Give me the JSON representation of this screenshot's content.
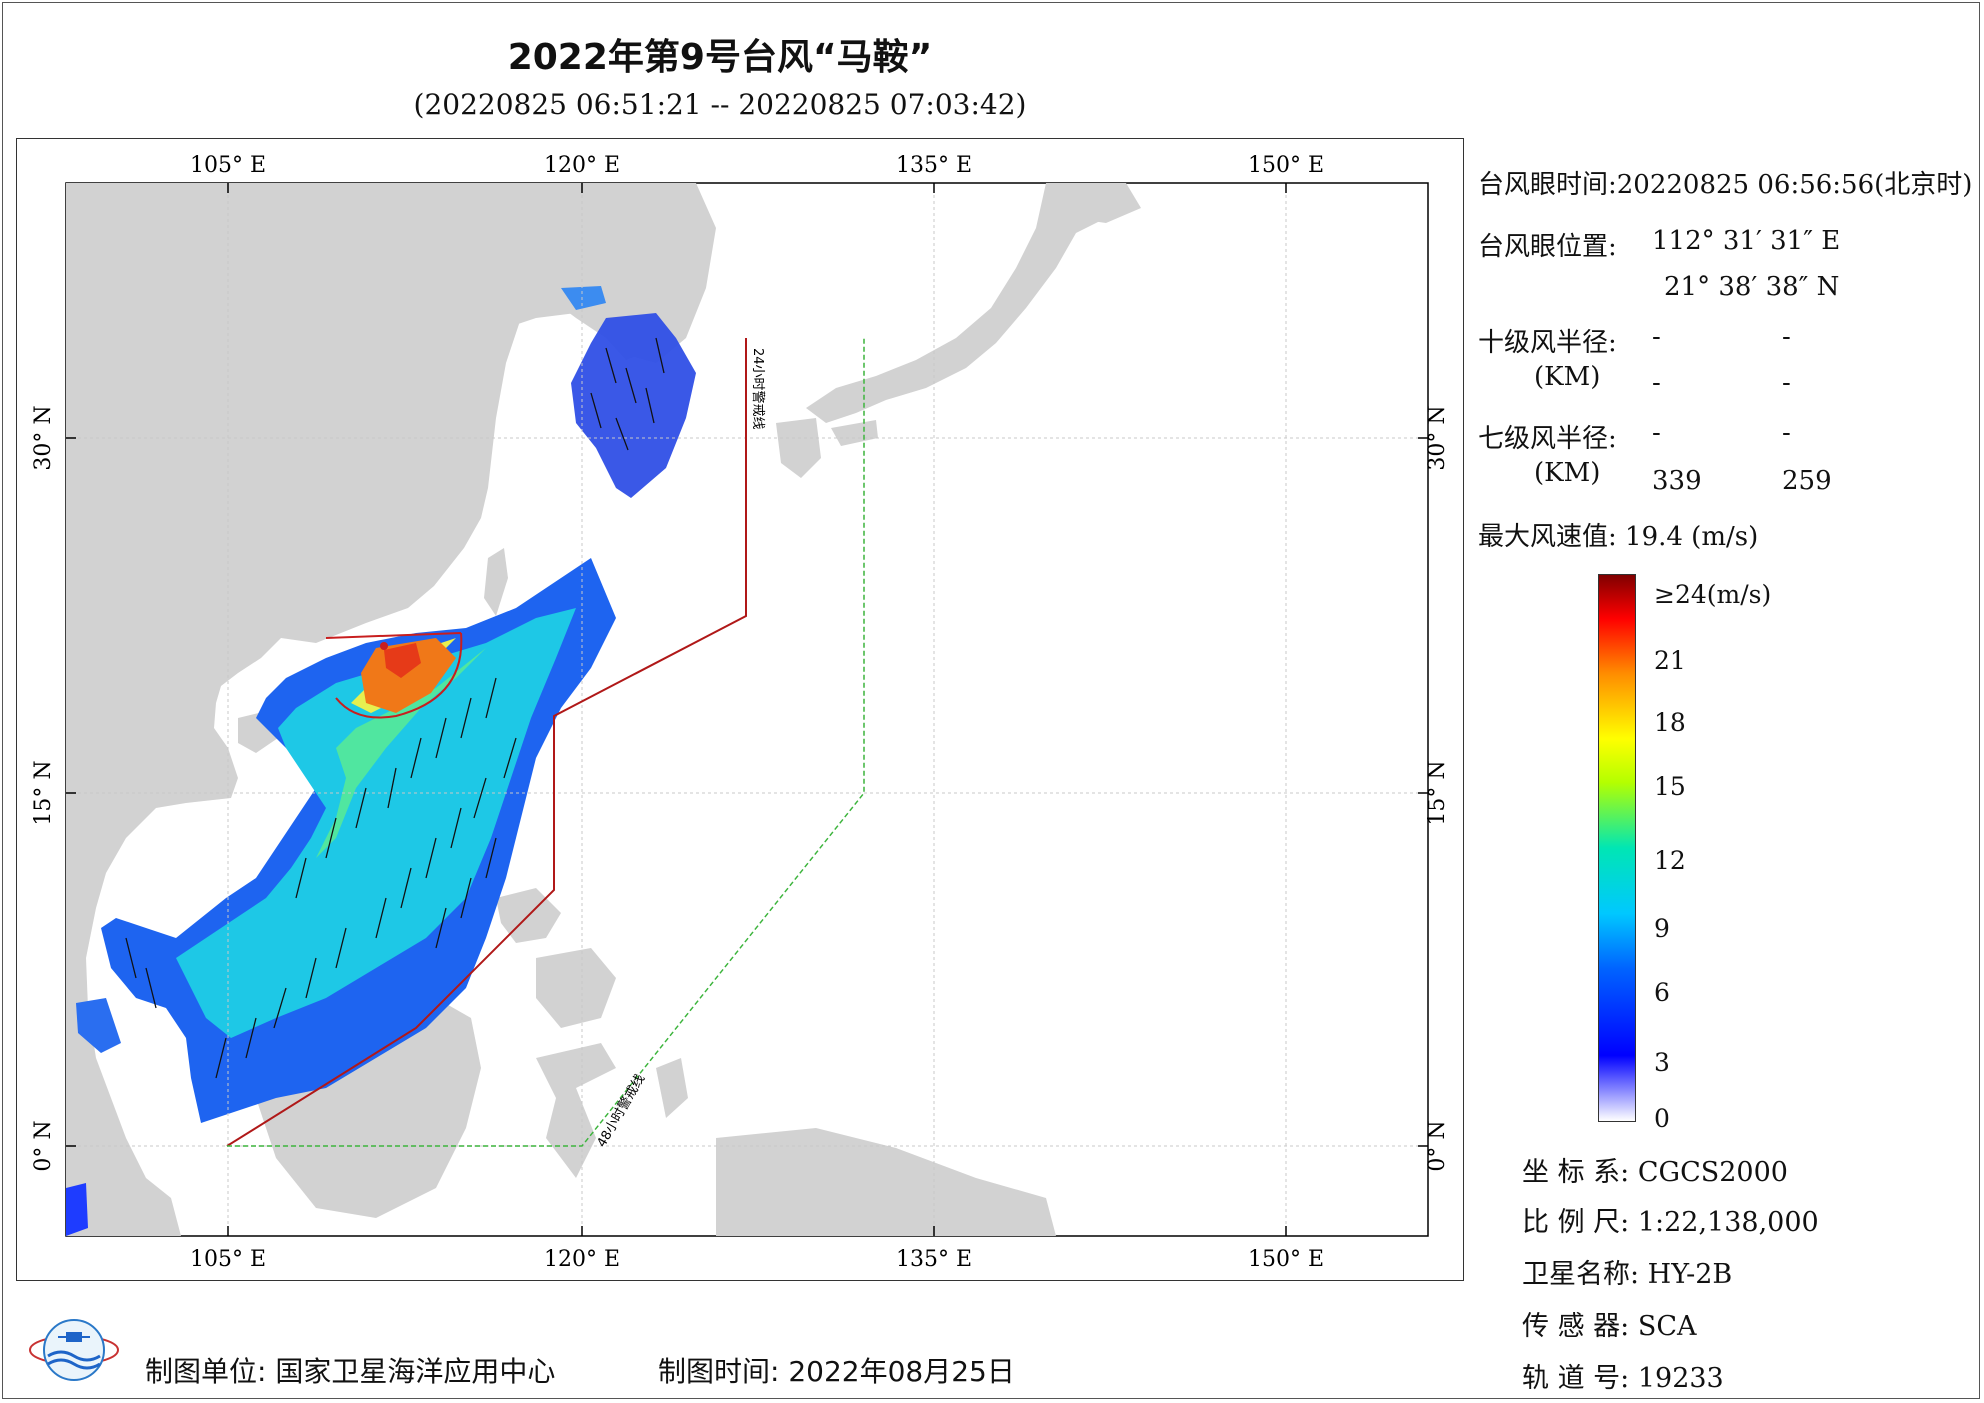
{
  "header": {
    "title": "2022年第9号台风“马鞍”",
    "subtitle": "(20220825 06:51:21 -- 20220825 07:03:42)"
  },
  "map": {
    "lon_labels": [
      "105° E",
      "120° E",
      "135° E",
      "150° E"
    ],
    "lat_labels": [
      "30° N",
      "15° N",
      "0° N"
    ],
    "warning_24h_label": "24小时警戒线",
    "warning_48h_label": "48小时警戒线",
    "colors": {
      "land": "#d2d2d2",
      "sea": "#ffffff",
      "line_24h": "#b01818",
      "line_48h": "#3cb43c"
    }
  },
  "info": {
    "eye_time": "台风眼时间:20220825 06:56:56(北京时)",
    "eye_pos_label": "台风眼位置:",
    "eye_lon": "112° 31′ 31″ E",
    "eye_lat": "21° 38′ 38″ N",
    "r10_label": "十级风半径:",
    "r10_v1": "-",
    "r10_v2": "-",
    "km_label": "(KM)",
    "r10_v3": "-",
    "r10_v4": "-",
    "r7_label": "七级风半径:",
    "r7_v1": "-",
    "r7_v2": "-",
    "r7_v3": "339",
    "r7_v4": "259",
    "max_wind": "最大风速值: 19.4 (m/s)"
  },
  "colorbar": {
    "labels": [
      "≥24(m/s)",
      "21",
      "18",
      "15",
      "12",
      "9",
      "6",
      "3",
      "0"
    ],
    "stops": [
      "#ffffff",
      "#0000ff",
      "#00c8ff",
      "#00ffaa",
      "#ffff00",
      "#ff8c00",
      "#ff0000",
      "#800000"
    ]
  },
  "meta": {
    "crs": "坐 标 系: CGCS2000",
    "scale": "比 例 尺: 1:22,138,000",
    "satellite": "卫星名称: HY-2B",
    "sensor": "传 感 器: SCA",
    "orbit": "轨 道 号: 19233"
  },
  "footer": {
    "unit": "制图单位: 国家卫星海洋应用中心",
    "date": "制图时间: 2022年08月25日"
  }
}
